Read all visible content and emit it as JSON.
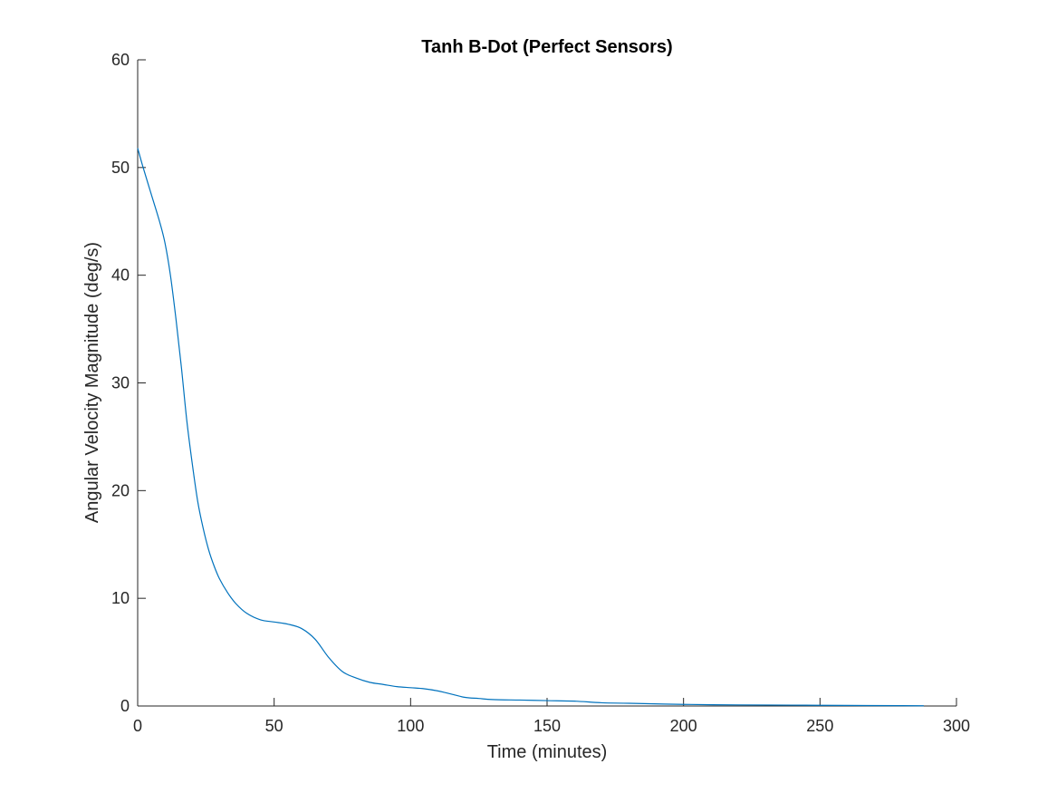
{
  "chart_data": {
    "type": "line",
    "title": "Tanh B-Dot (Perfect Sensors)",
    "xlabel": "Time (minutes)",
    "ylabel": "Angular Velocity Magnitude (deg/s)",
    "xlim": [
      0,
      300
    ],
    "ylim": [
      0,
      60
    ],
    "xticks": [
      0,
      50,
      100,
      150,
      200,
      250,
      300
    ],
    "yticks": [
      0,
      10,
      20,
      30,
      40,
      50,
      60
    ],
    "grid": false,
    "legend": "none",
    "series": [
      {
        "color": "#0072BD",
        "x": [
          0,
          2,
          5,
          8,
          10,
          12,
          14,
          16,
          18,
          20,
          22,
          24,
          26,
          28,
          30,
          33,
          36,
          40,
          45,
          50,
          55,
          60,
          65,
          70,
          75,
          80,
          85,
          90,
          95,
          100,
          105,
          110,
          115,
          120,
          125,
          130,
          140,
          150,
          160,
          170,
          180,
          200,
          220,
          240,
          260,
          280,
          288
        ],
        "y": [
          51.8,
          50.0,
          47.5,
          45.0,
          43.0,
          40.0,
          36.0,
          31.5,
          26.5,
          22.5,
          19.0,
          16.5,
          14.5,
          13.0,
          11.8,
          10.5,
          9.5,
          8.6,
          8.0,
          7.8,
          7.6,
          7.2,
          6.2,
          4.5,
          3.2,
          2.6,
          2.2,
          2.0,
          1.8,
          1.7,
          1.6,
          1.4,
          1.1,
          0.8,
          0.7,
          0.6,
          0.55,
          0.5,
          0.45,
          0.3,
          0.25,
          0.15,
          0.1,
          0.08,
          0.05,
          0.03,
          0.02
        ]
      }
    ]
  }
}
